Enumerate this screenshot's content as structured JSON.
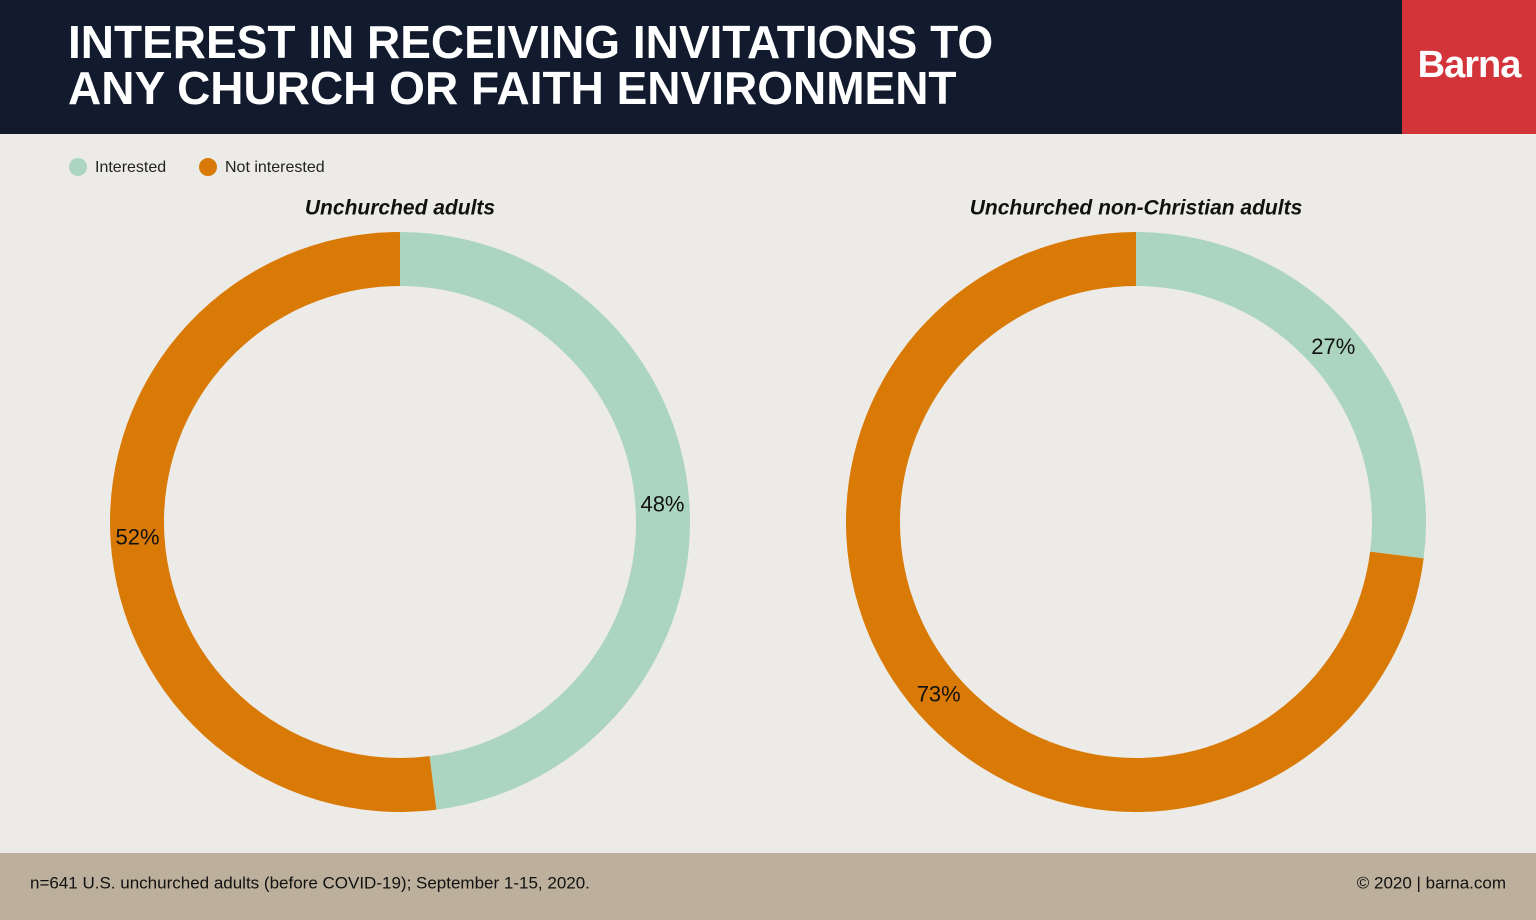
{
  "header": {
    "title": [
      "INTEREST IN RECEIVING INVITATIONS TO",
      "ANY CHURCH OR FAITH ENVIRONMENT"
    ],
    "logo": "Barna"
  },
  "legend": [
    {
      "name": "Interested",
      "color": "#acd5c0"
    },
    {
      "name": "Not interested",
      "color": "#d97a06"
    }
  ],
  "chart_data": [
    {
      "type": "pie",
      "title": "Unchurched adults",
      "values": [
        48,
        52
      ],
      "value_labels": [
        "48%",
        "52%"
      ]
    },
    {
      "type": "pie",
      "title": "Unchurched non-Christian adults",
      "values": [
        27,
        73
      ],
      "value_labels": [
        "27%",
        "73%"
      ]
    }
  ],
  "footer": {
    "source": "n=641 U.S. unchurched adults (before COVID-19); September 1-15, 2020.",
    "credit": "© 2020 | barna.com"
  }
}
